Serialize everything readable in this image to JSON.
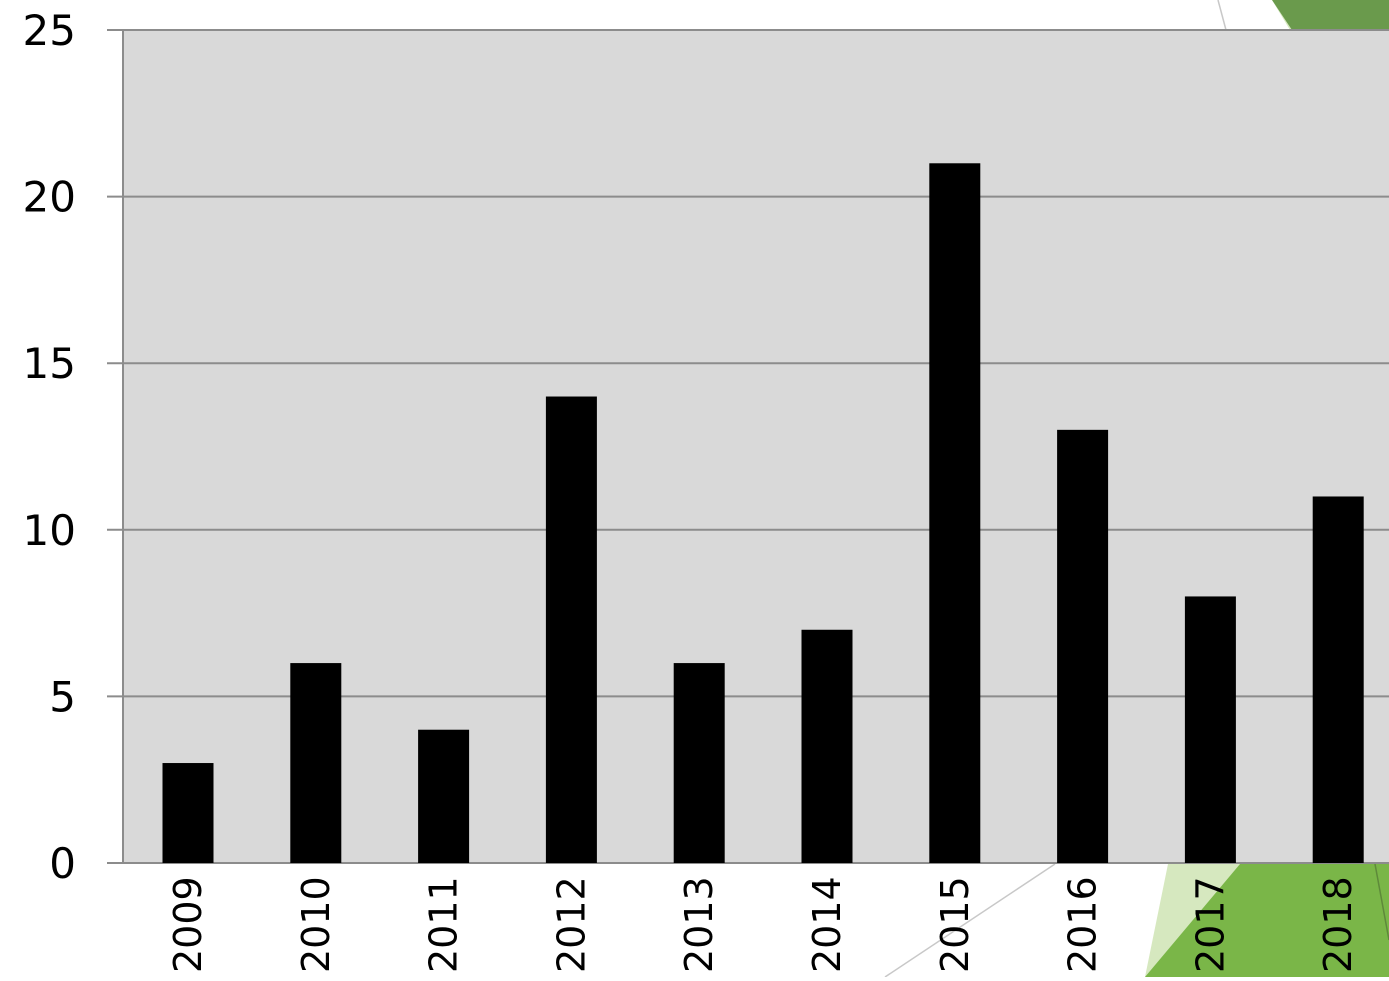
{
  "chart_data": {
    "type": "bar",
    "title": "",
    "xlabel": "",
    "ylabel": "",
    "categories": [
      "2009",
      "2010",
      "2011",
      "2012",
      "2013",
      "2014",
      "2015",
      "2016",
      "2017",
      "2018"
    ],
    "values": [
      3,
      6,
      4,
      14,
      6,
      7,
      21,
      13,
      8,
      11
    ],
    "ylim": [
      0,
      25
    ],
    "yticks": [
      "0",
      "5",
      "10",
      "15",
      "20",
      "25"
    ],
    "grid": true,
    "legend": "none",
    "x_tick_rotation": "vertical",
    "colors": {
      "bar": "#000000",
      "plot_background": "#d9d9d9",
      "gridline": "#8c8c8c",
      "accent_green": "#7ab648",
      "accent_dark_green": "#6a9a4c",
      "accent_light_green": "#d6e8bf"
    }
  }
}
